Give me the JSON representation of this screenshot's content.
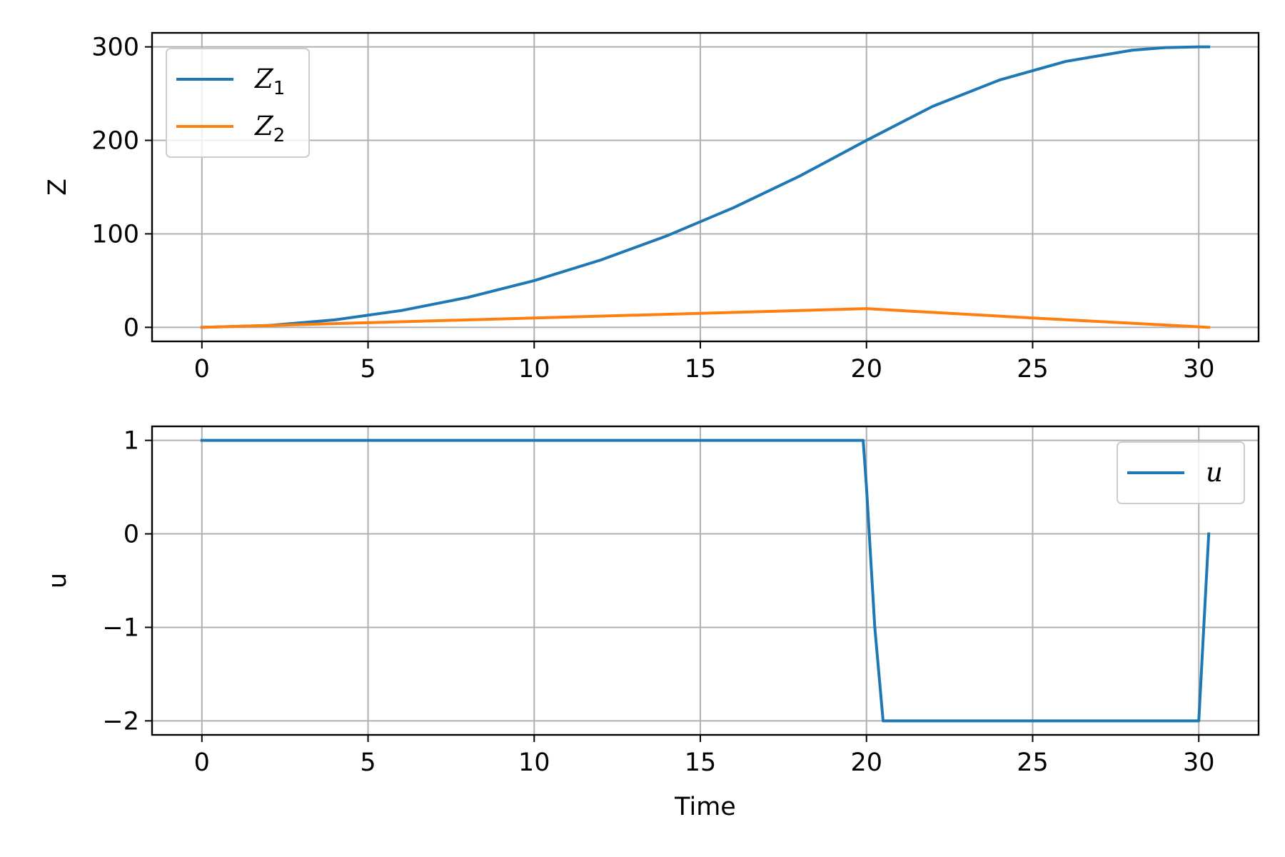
{
  "chart_data": [
    {
      "type": "line",
      "title": "",
      "xlabel": "",
      "ylabel": "Z",
      "xlim": [
        -1.5,
        31.8
      ],
      "ylim": [
        -15,
        315
      ],
      "xticks": [
        0,
        5,
        10,
        15,
        20,
        25,
        30
      ],
      "yticks": [
        0,
        100,
        200,
        300
      ],
      "xtick_labels": [
        "0",
        "5",
        "10",
        "15",
        "20",
        "25",
        "30"
      ],
      "ytick_labels": [
        "0",
        "100",
        "200",
        "300"
      ],
      "grid": true,
      "legend": "top-left",
      "series": [
        {
          "name": "Z",
          "name_subscript": "1",
          "color": "#1f77b4",
          "x": [
            0,
            2,
            4,
            6,
            8,
            10,
            12,
            14,
            16,
            18,
            20,
            22,
            24,
            26,
            28,
            29,
            30,
            30.3
          ],
          "y": [
            0,
            2,
            8,
            18,
            32,
            50,
            72,
            98,
            128,
            162,
            200,
            236.5,
            264.5,
            284.5,
            296.5,
            299.2,
            300,
            300
          ]
        },
        {
          "name": "Z",
          "name_subscript": "2",
          "color": "#ff7f0e",
          "x": [
            0,
            5,
            10,
            15,
            20,
            25,
            30.3
          ],
          "y": [
            0,
            5,
            10,
            15,
            20,
            10,
            0
          ]
        }
      ]
    },
    {
      "type": "line",
      "title": "",
      "xlabel": "Time",
      "ylabel": "u",
      "xlim": [
        -1.5,
        31.8
      ],
      "ylim": [
        -2.15,
        1.15
      ],
      "xticks": [
        0,
        5,
        10,
        15,
        20,
        25,
        30
      ],
      "yticks": [
        1,
        0,
        -1,
        -2
      ],
      "xtick_labels": [
        "0",
        "5",
        "10",
        "15",
        "20",
        "25",
        "30"
      ],
      "ytick_labels": [
        "1",
        "0",
        "−1",
        "−2"
      ],
      "grid": true,
      "legend": "top-right",
      "series": [
        {
          "name": "u",
          "color": "#1f77b4",
          "x": [
            0,
            19.9,
            20.0,
            20.25,
            20.5,
            30.0,
            30.3
          ],
          "y": [
            1,
            1,
            0.5,
            -1,
            -2,
            -2,
            0
          ]
        }
      ]
    }
  ]
}
